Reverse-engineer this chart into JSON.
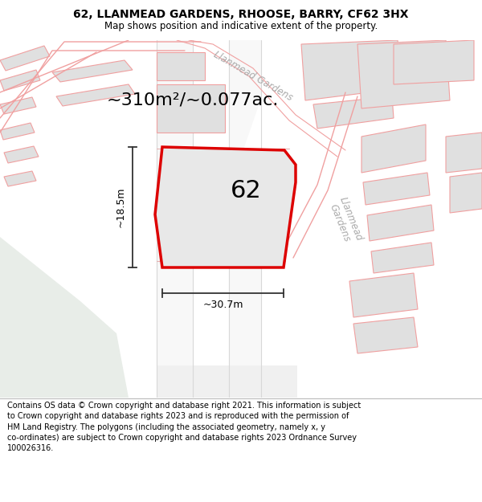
{
  "title_line1": "62, LLANMEAD GARDENS, RHOOSE, BARRY, CF62 3HX",
  "title_line2": "Map shows position and indicative extent of the property.",
  "area_text": "~310m²/~0.077ac.",
  "plot_number": "62",
  "dim_height": "~18.5m",
  "dim_width": "~30.7m",
  "footer_text": "Contains OS data © Crown copyright and database right 2021. This information is subject to Crown copyright and database rights 2023 and is reproduced with the permission of HM Land Registry. The polygons (including the associated geometry, namely x, y co-ordinates) are subject to Crown copyright and database rights 2023 Ordnance Survey 100026316.",
  "bg_map_color": "#f5f5f5",
  "bg_green_color": "#e8ede8",
  "road_fill_color": "#ffffff",
  "road_line_color": "#f0a0a0",
  "plot_fill_color": "#e8e8e8",
  "plot_edge_color": "#dd0000",
  "building_fill_color": "#e0e0e0",
  "building_edge_color": "#f0a0a0",
  "footer_bg": "#ffffff",
  "header_bg": "#ffffff",
  "road_label_color": "#aaaaaa",
  "dim_line_color": "#333333",
  "area_fontsize": 16,
  "plot_label_fontsize": 22,
  "dim_fontsize": 9,
  "road_label_fontsize": 8.5
}
